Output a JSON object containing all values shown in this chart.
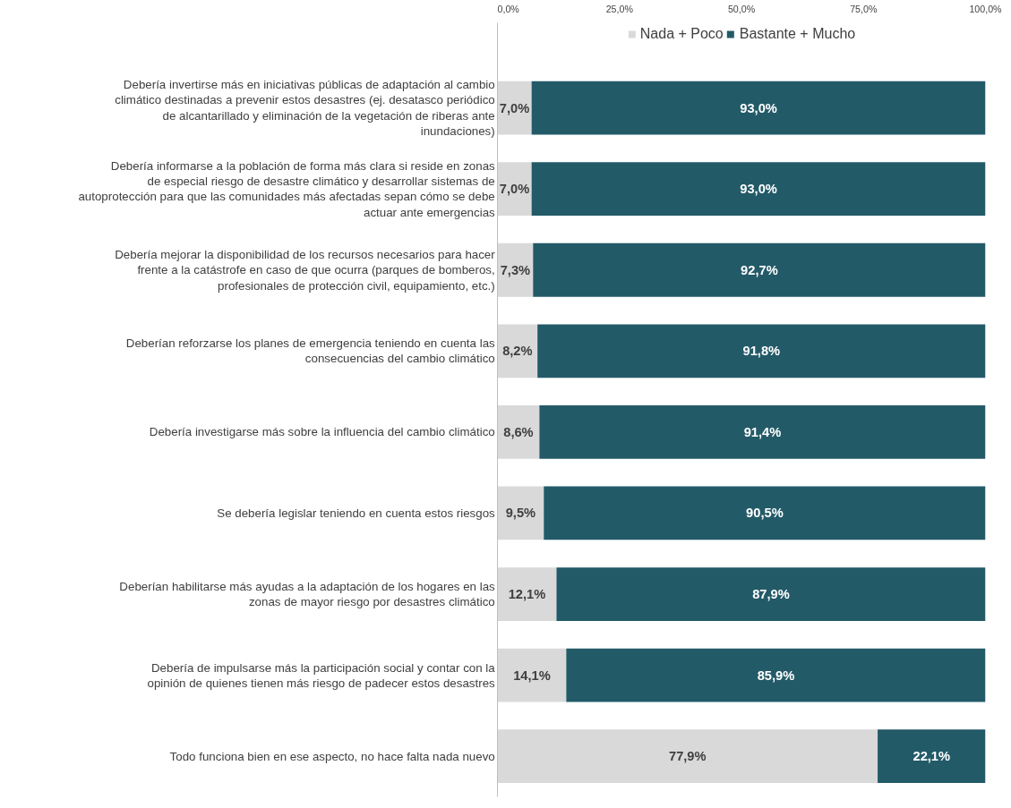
{
  "chart_data": {
    "type": "bar",
    "orientation": "horizontal",
    "stacked": true,
    "categories": [
      "Debería invertirse más en iniciativas públicas de adaptación al cambio climático destinadas a prevenir estos desastres (ej. desatasco periódico de alcantarillado y eliminación de la vegetación de riberas ante inundaciones)",
      "Debería informarse a la población de forma más clara si reside en zonas de especial riesgo de desastre climático y desarrollar sistemas de autoprotección para que las comunidades más afectadas sepan cómo se debe actuar ante emergencias",
      "Debería mejorar la disponibilidad de los recursos necesarios para hacer frente a la catástrofe en caso de que ocurra (parques de bomberos, profesionales de protección civil, equipamiento, etc.)",
      "Deberían reforzarse los planes de emergencia teniendo en cuenta las consecuencias del cambio climático",
      "Debería investigarse más sobre la influencia del cambio climático",
      "Se debería legislar teniendo en cuenta estos riesgos",
      "Deberían habilitarse más ayudas a la adaptación de los hogares en las zonas de mayor riesgo por desastres climático",
      "Debería de impulsarse más la participación social y contar con la opinión de quienes tienen más riesgo de padecer estos desastres",
      "Todo funciona bien en ese aspecto, no hace falta nada nuevo"
    ],
    "series": [
      {
        "name": "Nada + Poco",
        "color": "#d9d9d9",
        "values": [
          7.0,
          7.0,
          7.3,
          8.2,
          8.6,
          9.5,
          12.1,
          14.1,
          77.9
        ],
        "value_labels": [
          "7,0%",
          "7,0%",
          "7,3%",
          "8,2%",
          "8,6%",
          "9,5%",
          "12,1%",
          "14,1%",
          "77,9%"
        ]
      },
      {
        "name": "Bastante + Mucho",
        "color": "#235a68",
        "values": [
          93.0,
          93.0,
          92.7,
          91.8,
          91.4,
          90.5,
          87.9,
          85.9,
          22.1
        ],
        "value_labels": [
          "93,0%",
          "93,0%",
          "92,7%",
          "91,8%",
          "91,4%",
          "90,5%",
          "87,9%",
          "85,9%",
          "22,1%"
        ]
      }
    ],
    "xlim": [
      0,
      100
    ],
    "xticks": [
      {
        "value": 0,
        "label": "0,0%"
      },
      {
        "value": 25,
        "label": "25,0%"
      },
      {
        "value": 50,
        "label": "50,0%"
      },
      {
        "value": 75,
        "label": "75,0%"
      },
      {
        "value": 100,
        "label": "100,0%"
      }
    ],
    "grid": false,
    "legend": "top"
  }
}
